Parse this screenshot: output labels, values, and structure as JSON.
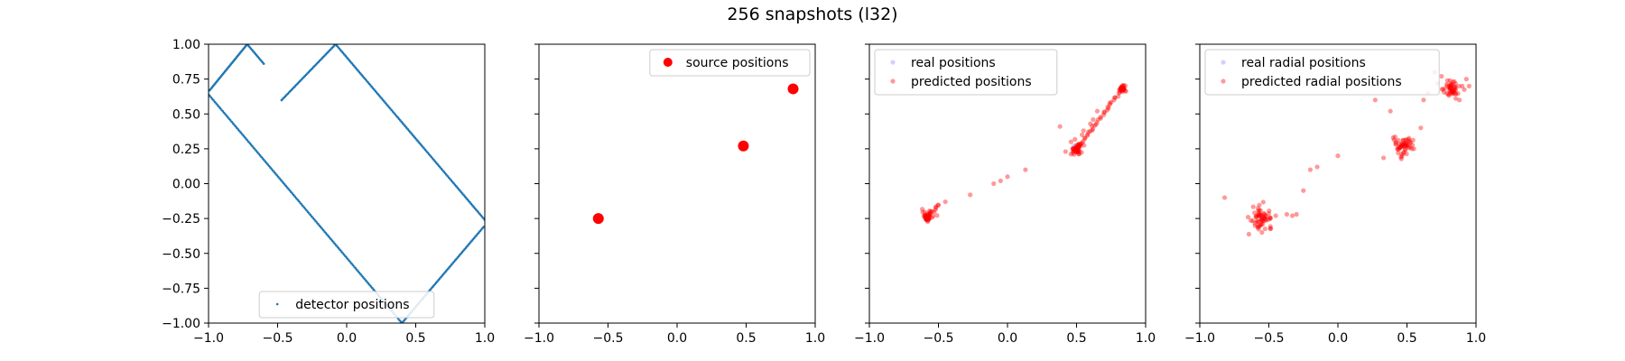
{
  "figure": {
    "title": "256 snapshots (l32)"
  },
  "axis_ticks": {
    "x": [
      {
        "v": -1.0,
        "t": "−1.0"
      },
      {
        "v": -0.5,
        "t": "−0.5"
      },
      {
        "v": 0.0,
        "t": "0.0"
      },
      {
        "v": 0.5,
        "t": "0.5"
      },
      {
        "v": 1.0,
        "t": "1.0"
      }
    ],
    "y": [
      {
        "v": 1.0,
        "t": "1.00"
      },
      {
        "v": 0.75,
        "t": "0.75"
      },
      {
        "v": 0.5,
        "t": "0.50"
      },
      {
        "v": 0.25,
        "t": "0.25"
      },
      {
        "v": 0.0,
        "t": "0.00"
      },
      {
        "v": -0.25,
        "t": "−0.25"
      },
      {
        "v": -0.5,
        "t": "−0.50"
      },
      {
        "v": -0.75,
        "t": "−0.75"
      },
      {
        "v": -1.0,
        "t": "−1.00"
      }
    ]
  },
  "chart_data": [
    {
      "type": "scatter",
      "xlim": [
        -1,
        1
      ],
      "ylim": [
        -1,
        1
      ],
      "legend_position": "lower-center",
      "series": [
        {
          "name": "detector positions",
          "color": "#1f77b4",
          "marker": "small-dot",
          "path": [
            [
              -0.6,
              0.86
            ],
            [
              -0.72,
              1.0
            ],
            [
              -1.0,
              0.66
            ],
            [
              -1.0,
              0.64
            ],
            [
              0.4,
              -1.0
            ],
            [
              1.0,
              -0.3
            ],
            [
              1.0,
              -0.26
            ],
            [
              -0.08,
              1.0
            ],
            [
              -0.48,
              0.59
            ]
          ],
          "points_per_segment": [
            14,
            40,
            0,
            150,
            70,
            0,
            120,
            45
          ]
        }
      ]
    },
    {
      "type": "scatter",
      "xlim": [
        -1,
        1
      ],
      "ylim": [
        -1,
        1
      ],
      "legend_position": "upper-right",
      "series": [
        {
          "name": "source positions",
          "color": "#ff0000",
          "marker": "large-dot",
          "points": [
            [
              -0.57,
              -0.25
            ],
            [
              0.48,
              0.27
            ],
            [
              0.84,
              0.68
            ]
          ]
        }
      ]
    },
    {
      "type": "scatter",
      "xlim": [
        -1,
        1
      ],
      "ylim": [
        -1,
        1
      ],
      "legend_position": "upper-left",
      "series": [
        {
          "name": "real positions",
          "color": "#0000ff",
          "marker": "dot",
          "points": [
            [
              -0.58,
              -0.26
            ],
            [
              -0.57,
              -0.25
            ],
            [
              0.48,
              0.27
            ],
            [
              0.49,
              0.26
            ],
            [
              0.84,
              0.68
            ],
            [
              0.83,
              0.67
            ]
          ]
        },
        {
          "name": "predicted positions",
          "color": "#ff0000",
          "marker": "dot",
          "clusters": [
            {
              "c": [
                -0.58,
                -0.235
              ],
              "spread": 0.018,
              "n": 45
            },
            {
              "c": [
                0.5,
                0.245
              ],
              "spread": 0.022,
              "n": 45
            },
            {
              "c": [
                0.83,
                0.68
              ],
              "spread": 0.012,
              "n": 35
            }
          ],
          "trails": [
            {
              "from": [
                -0.57,
                -0.23
              ],
              "to": [
                -0.5,
                -0.15
              ],
              "n": 10
            },
            {
              "from": [
                0.52,
                0.27
              ],
              "to": [
                0.83,
                0.68
              ],
              "n": 35
            }
          ],
          "points": [
            [
              -0.45,
              -0.13
            ],
            [
              -0.27,
              -0.08
            ],
            [
              -0.1,
              0.0
            ],
            [
              -0.05,
              0.02
            ],
            [
              0.0,
              0.05
            ],
            [
              0.13,
              0.1
            ],
            [
              0.38,
              0.41
            ],
            [
              0.42,
              0.23
            ],
            [
              0.46,
              0.3
            ],
            [
              0.54,
              0.35
            ],
            [
              0.55,
              0.38
            ],
            [
              0.6,
              0.43
            ],
            [
              0.62,
              0.46
            ],
            [
              0.65,
              0.52
            ]
          ]
        }
      ]
    },
    {
      "type": "scatter",
      "xlim": [
        -1,
        1
      ],
      "ylim": [
        -1,
        1
      ],
      "legend_position": "upper-left",
      "series": [
        {
          "name": "real radial positions",
          "color": "#0000ff",
          "marker": "dot",
          "points": [
            [
              -0.55,
              -0.25
            ],
            [
              -0.54,
              -0.24
            ],
            [
              0.48,
              0.27
            ],
            [
              0.49,
              0.28
            ],
            [
              0.83,
              0.68
            ],
            [
              0.82,
              0.67
            ]
          ]
        },
        {
          "name": "predicted radial positions",
          "color": "#ff0000",
          "marker": "dot",
          "clusters": [
            {
              "c": [
                -0.55,
                -0.24
              ],
              "spread": 0.035,
              "n": 60
            },
            {
              "c": [
                0.48,
                0.27
              ],
              "spread": 0.035,
              "n": 55
            },
            {
              "c": [
                0.82,
                0.68
              ],
              "spread": 0.03,
              "n": 50
            }
          ],
          "points": [
            [
              -0.82,
              -0.1
            ],
            [
              -0.65,
              -0.24
            ],
            [
              -0.6,
              -0.3
            ],
            [
              -0.55,
              -0.35
            ],
            [
              -0.45,
              -0.23
            ],
            [
              -0.37,
              -0.22
            ],
            [
              -0.33,
              -0.23
            ],
            [
              -0.3,
              -0.22
            ],
            [
              -0.25,
              -0.05
            ],
            [
              -0.2,
              0.1
            ],
            [
              -0.15,
              0.12
            ],
            [
              0.0,
              0.2
            ],
            [
              0.27,
              0.6
            ],
            [
              0.38,
              0.52
            ],
            [
              0.4,
              0.33
            ],
            [
              0.42,
              0.3
            ],
            [
              0.55,
              0.25
            ],
            [
              0.6,
              0.4
            ],
            [
              0.62,
              0.6
            ],
            [
              0.65,
              0.65
            ],
            [
              0.7,
              0.8
            ],
            [
              0.72,
              0.72
            ],
            [
              0.75,
              0.77
            ],
            [
              0.9,
              0.7
            ],
            [
              0.95,
              0.7
            ],
            [
              0.93,
              0.75
            ],
            [
              0.88,
              0.6
            ]
          ]
        }
      ]
    }
  ]
}
